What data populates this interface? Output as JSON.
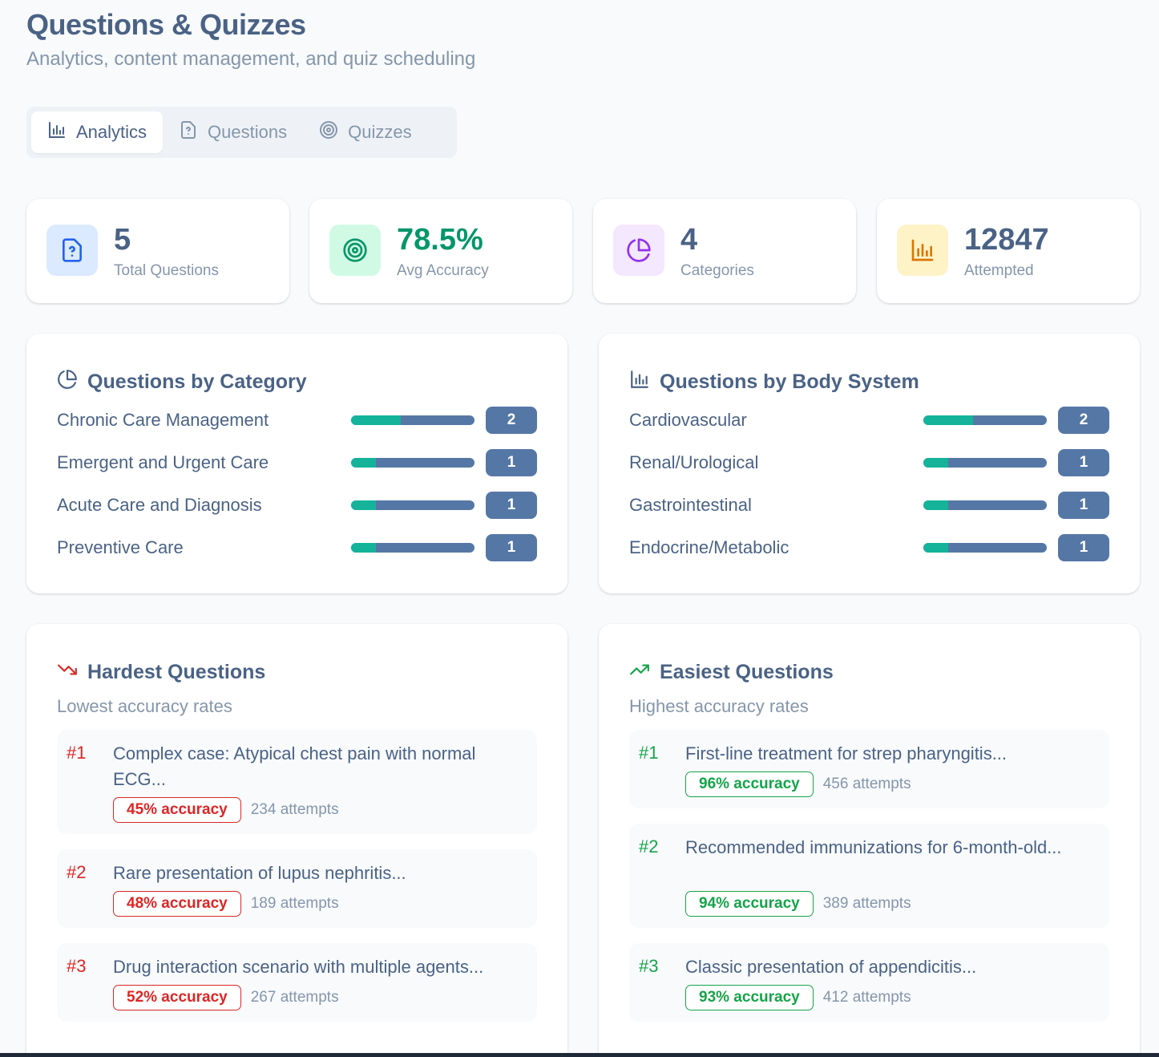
{
  "header": {
    "title": "Questions & Quizzes",
    "subtitle": "Analytics, content management, and quiz scheduling"
  },
  "tabs": [
    {
      "label": "Analytics",
      "icon": "bar-chart-icon",
      "active": true
    },
    {
      "label": "Questions",
      "icon": "file-question-icon",
      "active": false
    },
    {
      "label": "Quizzes",
      "icon": "target-icon",
      "active": false
    }
  ],
  "stats": [
    {
      "value": "5",
      "label": "Total Questions",
      "icon": "file-question-icon",
      "icon_bg": "#dbeafe",
      "icon_color": "#2563eb",
      "value_color": "#4a6285"
    },
    {
      "value": "78.5%",
      "label": "Avg Accuracy",
      "icon": "target-icon",
      "icon_bg": "#d1fae5",
      "icon_color": "#059669",
      "value_color": "#059669"
    },
    {
      "value": "4",
      "label": "Categories",
      "icon": "pie-chart-icon",
      "icon_bg": "#f3e8ff",
      "icon_color": "#9333ea",
      "value_color": "#4a6285"
    },
    {
      "value": "12847",
      "label": "Attempted",
      "icon": "bar-chart-icon",
      "icon_bg": "#fef3c7",
      "icon_color": "#d97706",
      "value_color": "#4a6285"
    }
  ],
  "by_category": {
    "title": "Questions by Category",
    "items": [
      {
        "label": "Chronic Care Management",
        "count": "2",
        "fraction": 0.4
      },
      {
        "label": "Emergent and Urgent Care",
        "count": "1",
        "fraction": 0.2
      },
      {
        "label": "Acute Care and Diagnosis",
        "count": "1",
        "fraction": 0.2
      },
      {
        "label": "Preventive Care",
        "count": "1",
        "fraction": 0.2
      }
    ]
  },
  "by_body_system": {
    "title": "Questions by Body System",
    "items": [
      {
        "label": "Cardiovascular",
        "count": "2",
        "fraction": 0.4
      },
      {
        "label": "Renal/Urological",
        "count": "1",
        "fraction": 0.2
      },
      {
        "label": "Gastrointestinal",
        "count": "1",
        "fraction": 0.2
      },
      {
        "label": "Endocrine/Metabolic",
        "count": "1",
        "fraction": 0.2
      }
    ]
  },
  "hardest": {
    "title": "Hardest Questions",
    "subtitle": "Lowest accuracy rates",
    "items": [
      {
        "rank": "#1",
        "text": "Complex case: Atypical chest pain with normal ECG...",
        "accuracy": "45% accuracy",
        "attempts": "234 attempts"
      },
      {
        "rank": "#2",
        "text": "Rare presentation of lupus nephritis...",
        "accuracy": "48% accuracy",
        "attempts": "189 attempts"
      },
      {
        "rank": "#3",
        "text": "Drug interaction scenario with multiple agents...",
        "accuracy": "52% accuracy",
        "attempts": "267 attempts"
      }
    ]
  },
  "easiest": {
    "title": "Easiest Questions",
    "subtitle": "Highest accuracy rates",
    "items": [
      {
        "rank": "#1",
        "text": "First-line treatment for strep pharyngitis...",
        "accuracy": "96% accuracy",
        "attempts": "456 attempts"
      },
      {
        "rank": "#2",
        "text": "Recommended immunizations for 6-month-old...",
        "accuracy": "94% accuracy",
        "attempts": "389 attempts"
      },
      {
        "rank": "#3",
        "text": "Classic presentation of appendicitis...",
        "accuracy": "93% accuracy",
        "attempts": "412 attempts"
      }
    ]
  }
}
